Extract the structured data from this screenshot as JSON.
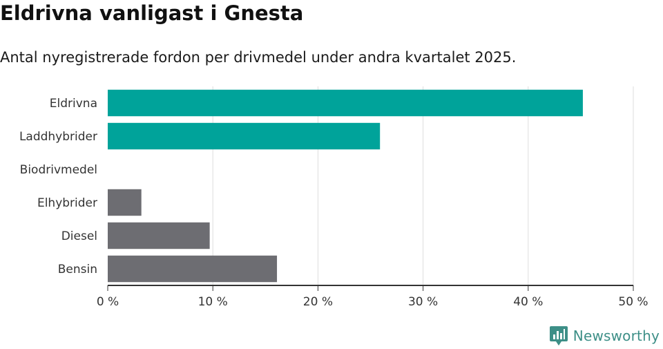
{
  "title": "Eldrivna vanligast i Gnesta",
  "subtitle": "Antal nyregistrerade fordon per drivmedel under andra kvartalet 2025.",
  "brand": {
    "name": "Newsworthy",
    "icon": "bar-chart-speech-bubble-icon"
  },
  "colors": {
    "highlight": "#00a39a",
    "default": "#6d6d72",
    "grid": "#dddddd",
    "axis": "#333333",
    "brand": "#3d8f87"
  },
  "chart_data": {
    "type": "bar",
    "orientation": "horizontal",
    "categories": [
      "Eldrivna",
      "Laddhybrider",
      "Biodrivmedel",
      "Elhybrider",
      "Diesel",
      "Bensin"
    ],
    "values": [
      45.2,
      25.9,
      0,
      3.2,
      9.7,
      16.1
    ],
    "highlight": [
      true,
      true,
      false,
      false,
      false,
      false
    ],
    "xlim": [
      0,
      50
    ],
    "xticks": [
      0,
      10,
      20,
      30,
      40,
      50
    ],
    "xtick_labels": [
      "0 %",
      "10 %",
      "20 %",
      "30 %",
      "40 %",
      "50 %"
    ],
    "grid": true,
    "xlabel": "",
    "ylabel": ""
  }
}
